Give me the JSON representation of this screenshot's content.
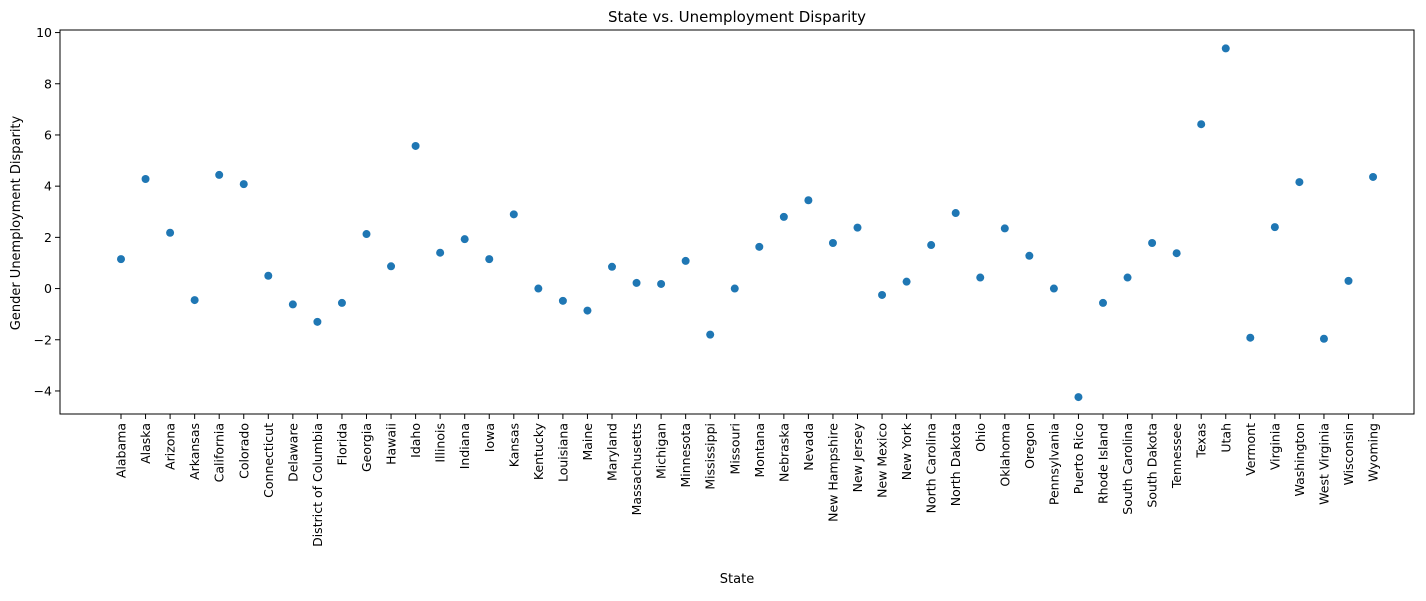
{
  "chart_data": {
    "type": "scatter",
    "title": "State vs. Unemployment Disparity",
    "xlabel": "State",
    "ylabel": "Gender Unemployment Disparity",
    "ylim": [
      -4.9,
      10.1
    ],
    "yticks": [
      -4,
      -2,
      0,
      2,
      4,
      6,
      8,
      10
    ],
    "ytick_labels": [
      "−4",
      "−2",
      "0",
      "2",
      "4",
      "6",
      "8",
      "10"
    ],
    "grid": false,
    "marker_color": "#1f77b4",
    "categories": [
      "Alabama",
      "Alaska",
      "Arizona",
      "Arkansas",
      "California",
      "Colorado",
      "Connecticut",
      "Delaware",
      "District of Columbia",
      "Florida",
      "Georgia",
      "Hawaii",
      "Idaho",
      "Illinois",
      "Indiana",
      "Iowa",
      "Kansas",
      "Kentucky",
      "Louisiana",
      "Maine",
      "Maryland",
      "Massachusetts",
      "Michigan",
      "Minnesota",
      "Mississippi",
      "Missouri",
      "Montana",
      "Nebraska",
      "Nevada",
      "New Hampshire",
      "New Jersey",
      "New Mexico",
      "New York",
      "North Carolina",
      "North Dakota",
      "Ohio",
      "Oklahoma",
      "Oregon",
      "Pennsylvania",
      "Puerto Rico",
      "Rhode Island",
      "South Carolina",
      "South Dakota",
      "Tennessee",
      "Texas",
      "Utah",
      "Vermont",
      "Virginia",
      "Washington",
      "West Virginia",
      "Wisconsin",
      "Wyoming"
    ],
    "values": [
      1.15,
      4.28,
      2.18,
      -0.45,
      4.44,
      4.08,
      0.5,
      -0.62,
      -1.3,
      -0.56,
      2.13,
      0.87,
      5.57,
      1.4,
      1.93,
      1.15,
      2.9,
      0.0,
      -0.48,
      -0.86,
      0.85,
      0.22,
      0.18,
      1.08,
      -1.8,
      0.0,
      1.63,
      2.8,
      3.45,
      1.78,
      2.38,
      -0.25,
      0.27,
      1.7,
      2.95,
      0.43,
      2.35,
      1.28,
      0.0,
      -4.24,
      -0.56,
      0.43,
      1.78,
      1.38,
      6.42,
      9.38,
      -1.92,
      2.4,
      4.16,
      -1.96,
      0.3,
      4.36
    ]
  }
}
